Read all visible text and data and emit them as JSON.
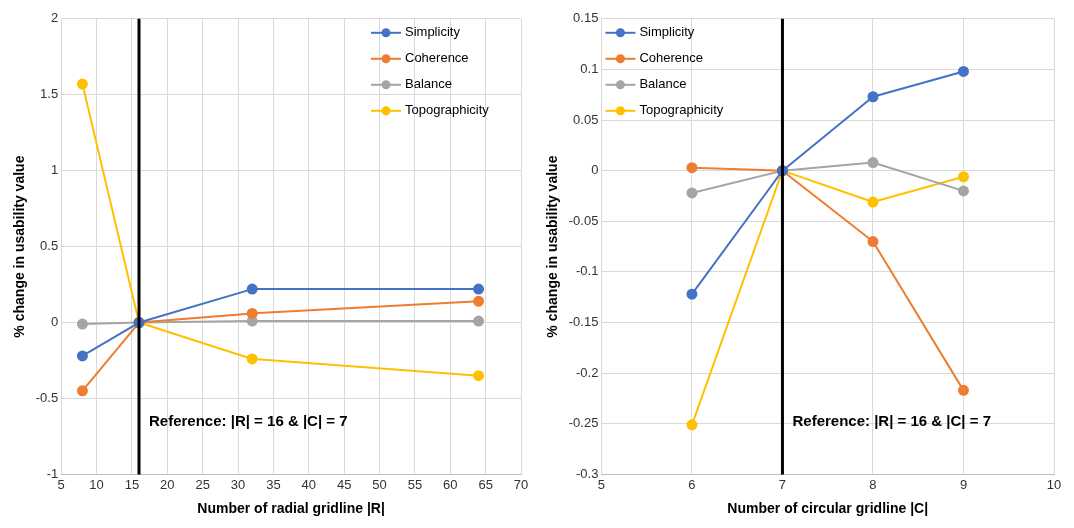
{
  "chart_data": [
    {
      "type": "line",
      "xlabel": "Number of radial gridline |R|",
      "ylabel": "% change in usability value",
      "x": [
        8,
        16,
        32,
        64
      ],
      "xlim": [
        5,
        70
      ],
      "xticks": [
        5,
        10,
        15,
        20,
        25,
        30,
        35,
        40,
        45,
        50,
        55,
        60,
        65,
        70
      ],
      "ylim": [
        -1,
        2
      ],
      "yticks": [
        -1,
        -0.5,
        0,
        0.5,
        1,
        1.5,
        2
      ],
      "grid": true,
      "legend": "top right",
      "marker": "circle",
      "series": [
        {
          "name": "Simplicity",
          "color": "#4472c4",
          "values": [
            -0.22,
            0,
            0.22,
            0.22
          ]
        },
        {
          "name": "Coherence",
          "color": "#ed7d31",
          "values": [
            -0.45,
            0,
            0.06,
            0.14
          ]
        },
        {
          "name": "Balance",
          "color": "#a5a5a5",
          "values": [
            -0.01,
            0,
            0.01,
            0.01
          ]
        },
        {
          "name": "Topographicity",
          "color": "#ffc000",
          "values": [
            1.57,
            0,
            -0.24,
            -0.35
          ]
        }
      ],
      "ref_lines": [
        {
          "axis": "x",
          "value": 16,
          "color": "#000000"
        }
      ],
      "annotations": [
        "Reference: |R| = 16 & |C| = 7"
      ]
    },
    {
      "type": "line",
      "xlabel": "Number of circular gridline |C|",
      "ylabel": "% change in usability value",
      "x": [
        6,
        7,
        8,
        9
      ],
      "xlim": [
        5,
        10
      ],
      "xticks": [
        5,
        6,
        7,
        8,
        9,
        10
      ],
      "ylim": [
        -0.3,
        0.15
      ],
      "yticks": [
        -0.3,
        -0.25,
        -0.2,
        -0.15,
        -0.1,
        -0.05,
        0,
        0.05,
        0.1,
        0.15
      ],
      "grid": true,
      "legend": "top left",
      "marker": "circle",
      "series": [
        {
          "name": "Simplicity",
          "color": "#4472c4",
          "values": [
            -0.122,
            0,
            0.073,
            0.098
          ]
        },
        {
          "name": "Coherence",
          "color": "#ed7d31",
          "values": [
            0.003,
            0,
            -0.07,
            -0.217
          ]
        },
        {
          "name": "Balance",
          "color": "#a5a5a5",
          "values": [
            -0.022,
            0,
            0.008,
            -0.02
          ]
        },
        {
          "name": "Topographicity",
          "color": "#ffc000",
          "values": [
            -0.251,
            0,
            -0.031,
            -0.006
          ]
        }
      ],
      "ref_lines": [
        {
          "axis": "x",
          "value": 7,
          "color": "#000000"
        }
      ],
      "annotations": [
        "Reference: |R| = 16 & |C| = 7"
      ]
    }
  ]
}
